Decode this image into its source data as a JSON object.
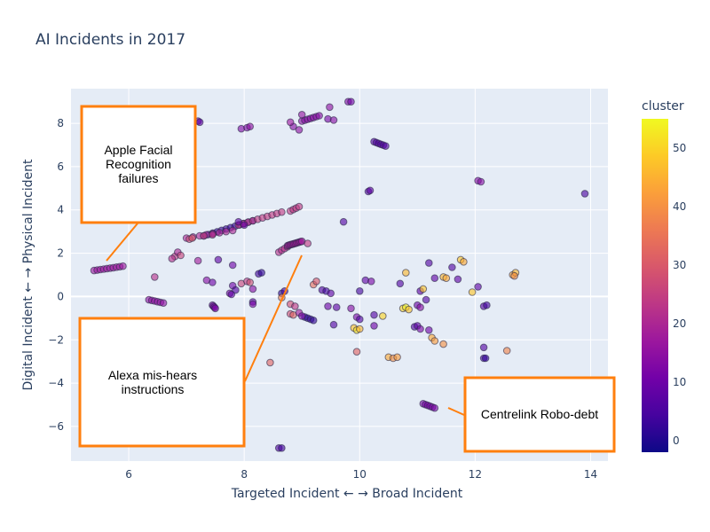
{
  "chart_data": {
    "type": "scatter",
    "title": "AI Incidents in 2017",
    "xlabel": "Targeted Incident ← → Broad Incident",
    "ylabel": "Digital Incident ← → Physical Incident",
    "xlim": [
      5.0,
      14.3
    ],
    "ylim": [
      -7.6,
      9.6
    ],
    "x_ticks": [
      6,
      8,
      10,
      12,
      14
    ],
    "y_ticks": [
      -6,
      -4,
      -2,
      0,
      2,
      4,
      6,
      8
    ],
    "colorbar": {
      "title": "cluster",
      "min": -2,
      "max": 55,
      "ticks": [
        0,
        10,
        20,
        30,
        40,
        50
      ]
    },
    "colorscale": [
      "#0d0887",
      "#46039f",
      "#7201a8",
      "#9c179e",
      "#bd3786",
      "#d8576b",
      "#ed7953",
      "#fb9f3a",
      "#fdca26",
      "#f0f921"
    ],
    "segments": [
      {
        "x0": 5.4,
        "y0": 1.2,
        "x1": 5.9,
        "y1": 1.4,
        "n": 10,
        "c": 17
      },
      {
        "x0": 7.3,
        "y0": 2.8,
        "x1": 8.15,
        "y1": 3.5,
        "n": 12,
        "c": 3
      },
      {
        "x0": 7.0,
        "y0": 2.7,
        "x1": 7.8,
        "y1": 3.05,
        "n": 8,
        "c": 20
      },
      {
        "x0": 7.9,
        "y0": 3.3,
        "x1": 8.65,
        "y1": 3.9,
        "n": 10,
        "c": 24
      },
      {
        "x0": 8.6,
        "y0": 2.05,
        "x1": 8.75,
        "y1": 2.3,
        "n": 4,
        "c": 22
      },
      {
        "x0": 8.75,
        "y0": 2.35,
        "x1": 9.0,
        "y1": 2.55,
        "n": 12,
        "c": 18
      },
      {
        "x0": 8.8,
        "y0": 3.95,
        "x1": 8.95,
        "y1": 4.15,
        "n": 4,
        "c": 24
      },
      {
        "x0": 9.0,
        "y0": 8.1,
        "x1": 9.3,
        "y1": 8.35,
        "n": 7,
        "c": 14
      },
      {
        "x0": 10.25,
        "y0": 7.15,
        "x1": 10.45,
        "y1": 6.95,
        "n": 6,
        "c": 6
      },
      {
        "x0": 11.1,
        "y0": -4.95,
        "x1": 11.3,
        "y1": -5.15,
        "n": 6,
        "c": 12
      },
      {
        "x0": 6.35,
        "y0": -0.15,
        "x1": 6.6,
        "y1": -0.3,
        "n": 6,
        "c": 15
      },
      {
        "x0": 7.45,
        "y0": -0.4,
        "x1": 7.5,
        "y1": -0.55,
        "n": 4,
        "c": 12
      },
      {
        "x0": 9.05,
        "y0": -0.95,
        "x1": 9.2,
        "y1": -1.1,
        "n": 4,
        "c": 2
      }
    ],
    "points": [
      {
        "x": 7.2,
        "y": 8.1,
        "c": 8
      },
      {
        "x": 7.23,
        "y": 8.05,
        "c": 8
      },
      {
        "x": 7.95,
        "y": 7.75,
        "c": 13
      },
      {
        "x": 8.05,
        "y": 7.8,
        "c": 13
      },
      {
        "x": 8.1,
        "y": 7.85,
        "c": 15
      },
      {
        "x": 8.85,
        "y": 7.85,
        "c": 14
      },
      {
        "x": 8.95,
        "y": 7.7,
        "c": 15
      },
      {
        "x": 8.8,
        "y": 8.05,
        "c": 17
      },
      {
        "x": 9.45,
        "y": 8.2,
        "c": 12
      },
      {
        "x": 9.55,
        "y": 8.15,
        "c": 14
      },
      {
        "x": 9.0,
        "y": 8.4,
        "c": 16
      },
      {
        "x": 9.48,
        "y": 8.75,
        "c": 15
      },
      {
        "x": 9.8,
        "y": 9.0,
        "c": 13
      },
      {
        "x": 9.85,
        "y": 9.0,
        "c": 11
      },
      {
        "x": 10.15,
        "y": 4.85,
        "c": 6
      },
      {
        "x": 10.18,
        "y": 4.9,
        "c": 8
      },
      {
        "x": 12.05,
        "y": 5.35,
        "c": 14
      },
      {
        "x": 12.1,
        "y": 5.3,
        "c": 14
      },
      {
        "x": 13.9,
        "y": 4.75,
        "c": 5
      },
      {
        "x": 9.72,
        "y": 3.45,
        "c": 6
      },
      {
        "x": 9.1,
        "y": 2.45,
        "c": 24
      },
      {
        "x": 7.05,
        "y": 2.65,
        "c": 27
      },
      {
        "x": 7.1,
        "y": 2.7,
        "c": 30
      },
      {
        "x": 6.8,
        "y": 1.85,
        "c": 24
      },
      {
        "x": 6.85,
        "y": 2.05,
        "c": 20
      },
      {
        "x": 6.9,
        "y": 1.9,
        "c": 26
      },
      {
        "x": 6.75,
        "y": 1.75,
        "c": 22
      },
      {
        "x": 7.2,
        "y": 1.65,
        "c": 18
      },
      {
        "x": 6.45,
        "y": 0.9,
        "c": 22
      },
      {
        "x": 7.3,
        "y": 2.8,
        "c": 25
      },
      {
        "x": 7.45,
        "y": 2.85,
        "c": 22
      },
      {
        "x": 7.9,
        "y": 3.45,
        "c": 8
      },
      {
        "x": 8.0,
        "y": 3.3,
        "c": 10
      },
      {
        "x": 7.55,
        "y": 1.7,
        "c": 8
      },
      {
        "x": 7.8,
        "y": 1.45,
        "c": 10
      },
      {
        "x": 7.35,
        "y": 0.75,
        "c": 14
      },
      {
        "x": 7.45,
        "y": 0.65,
        "c": 10
      },
      {
        "x": 7.95,
        "y": 0.6,
        "c": 26
      },
      {
        "x": 8.05,
        "y": 0.7,
        "c": 24
      },
      {
        "x": 8.1,
        "y": 0.65,
        "c": 28
      },
      {
        "x": 7.8,
        "y": 0.5,
        "c": 10
      },
      {
        "x": 7.85,
        "y": 0.3,
        "c": 6
      },
      {
        "x": 7.75,
        "y": 0.15,
        "c": 12
      },
      {
        "x": 7.78,
        "y": 0.1,
        "c": 8
      },
      {
        "x": 8.25,
        "y": 1.05,
        "c": 4
      },
      {
        "x": 8.3,
        "y": 1.1,
        "c": 2
      },
      {
        "x": 8.15,
        "y": 0.35,
        "c": 14
      },
      {
        "x": 8.15,
        "y": -0.25,
        "c": 8
      },
      {
        "x": 8.15,
        "y": -0.35,
        "c": 12
      },
      {
        "x": 8.65,
        "y": 0.15,
        "c": 2
      },
      {
        "x": 8.7,
        "y": 0.25,
        "c": 4
      },
      {
        "x": 8.65,
        "y": -0.05,
        "c": 38
      },
      {
        "x": 8.8,
        "y": -0.35,
        "c": 28
      },
      {
        "x": 8.88,
        "y": -0.45,
        "c": 24
      },
      {
        "x": 8.8,
        "y": -0.8,
        "c": 28
      },
      {
        "x": 8.85,
        "y": -0.85,
        "c": 32
      },
      {
        "x": 8.95,
        "y": -0.75,
        "c": 18
      },
      {
        "x": 9.0,
        "y": -0.9,
        "c": 12
      },
      {
        "x": 9.2,
        "y": 0.55,
        "c": 34
      },
      {
        "x": 9.25,
        "y": 0.7,
        "c": 30
      },
      {
        "x": 9.35,
        "y": 0.3,
        "c": 6
      },
      {
        "x": 9.42,
        "y": 0.25,
        "c": 4
      },
      {
        "x": 9.5,
        "y": 0.15,
        "c": 8
      },
      {
        "x": 9.45,
        "y": -0.45,
        "c": 10
      },
      {
        "x": 9.6,
        "y": -0.5,
        "c": 8
      },
      {
        "x": 9.55,
        "y": -1.3,
        "c": 6
      },
      {
        "x": 9.85,
        "y": -0.55,
        "c": 14
      },
      {
        "x": 9.9,
        "y": -1.45,
        "c": 48
      },
      {
        "x": 9.95,
        "y": -1.55,
        "c": 52
      },
      {
        "x": 10.0,
        "y": -1.5,
        "c": 46
      },
      {
        "x": 9.95,
        "y": -0.95,
        "c": 12
      },
      {
        "x": 10.0,
        "y": -1.05,
        "c": 6
      },
      {
        "x": 9.95,
        "y": -2.55,
        "c": 32
      },
      {
        "x": 10.1,
        "y": 0.75,
        "c": 8
      },
      {
        "x": 10.2,
        "y": 0.7,
        "c": 12
      },
      {
        "x": 10.0,
        "y": 0.25,
        "c": 4
      },
      {
        "x": 10.25,
        "y": -0.85,
        "c": 6
      },
      {
        "x": 10.25,
        "y": -1.35,
        "c": 10
      },
      {
        "x": 10.4,
        "y": -0.9,
        "c": 50
      },
      {
        "x": 10.5,
        "y": -2.8,
        "c": 44
      },
      {
        "x": 10.58,
        "y": -2.85,
        "c": 40
      },
      {
        "x": 10.65,
        "y": -2.8,
        "c": 42
      },
      {
        "x": 10.7,
        "y": 0.6,
        "c": 6
      },
      {
        "x": 10.8,
        "y": 1.1,
        "c": 46
      },
      {
        "x": 10.75,
        "y": -0.55,
        "c": 50
      },
      {
        "x": 10.8,
        "y": -0.5,
        "c": 54
      },
      {
        "x": 10.85,
        "y": -0.6,
        "c": 48
      },
      {
        "x": 10.95,
        "y": -1.4,
        "c": 6
      },
      {
        "x": 11.0,
        "y": -1.35,
        "c": 8
      },
      {
        "x": 11.05,
        "y": -1.5,
        "c": 12
      },
      {
        "x": 11.0,
        "y": -0.4,
        "c": 10
      },
      {
        "x": 11.05,
        "y": -0.5,
        "c": 14
      },
      {
        "x": 11.05,
        "y": 0.25,
        "c": 8
      },
      {
        "x": 11.1,
        "y": 0.35,
        "c": 48
      },
      {
        "x": 11.15,
        "y": -0.15,
        "c": 6
      },
      {
        "x": 11.2,
        "y": -1.55,
        "c": 10
      },
      {
        "x": 11.25,
        "y": -1.9,
        "c": 44
      },
      {
        "x": 11.3,
        "y": -2.05,
        "c": 42
      },
      {
        "x": 11.3,
        "y": 0.85,
        "c": 8
      },
      {
        "x": 11.2,
        "y": 1.55,
        "c": 6
      },
      {
        "x": 11.45,
        "y": 0.9,
        "c": 46
      },
      {
        "x": 11.5,
        "y": 0.85,
        "c": 44
      },
      {
        "x": 11.45,
        "y": -2.2,
        "c": 40
      },
      {
        "x": 11.6,
        "y": 1.35,
        "c": 6
      },
      {
        "x": 11.7,
        "y": 0.8,
        "c": 8
      },
      {
        "x": 11.75,
        "y": 1.7,
        "c": 48
      },
      {
        "x": 11.8,
        "y": 1.6,
        "c": 44
      },
      {
        "x": 11.95,
        "y": 0.2,
        "c": 48
      },
      {
        "x": 12.05,
        "y": 0.45,
        "c": 8
      },
      {
        "x": 12.15,
        "y": -0.45,
        "c": 6
      },
      {
        "x": 12.2,
        "y": -0.4,
        "c": 4
      },
      {
        "x": 12.15,
        "y": -2.35,
        "c": 6
      },
      {
        "x": 12.15,
        "y": -2.85,
        "c": 4
      },
      {
        "x": 12.18,
        "y": -2.85,
        "c": 2
      },
      {
        "x": 12.55,
        "y": -2.5,
        "c": 38
      },
      {
        "x": 12.65,
        "y": 1.0,
        "c": 44
      },
      {
        "x": 12.7,
        "y": 1.1,
        "c": 46
      },
      {
        "x": 12.68,
        "y": 0.95,
        "c": 40
      },
      {
        "x": 8.45,
        "y": -3.05,
        "c": 32
      },
      {
        "x": 8.6,
        "y": -7.0,
        "c": 6
      },
      {
        "x": 8.65,
        "y": -7.0,
        "c": 4
      }
    ]
  },
  "annotations": [
    {
      "lines": [
        "Apple Facial",
        "Recognition",
        "failures"
      ]
    },
    {
      "lines": [
        "Alexa mis-hears",
        "instructions"
      ]
    },
    {
      "lines": [
        "Centrelink Robo-debt"
      ]
    }
  ]
}
